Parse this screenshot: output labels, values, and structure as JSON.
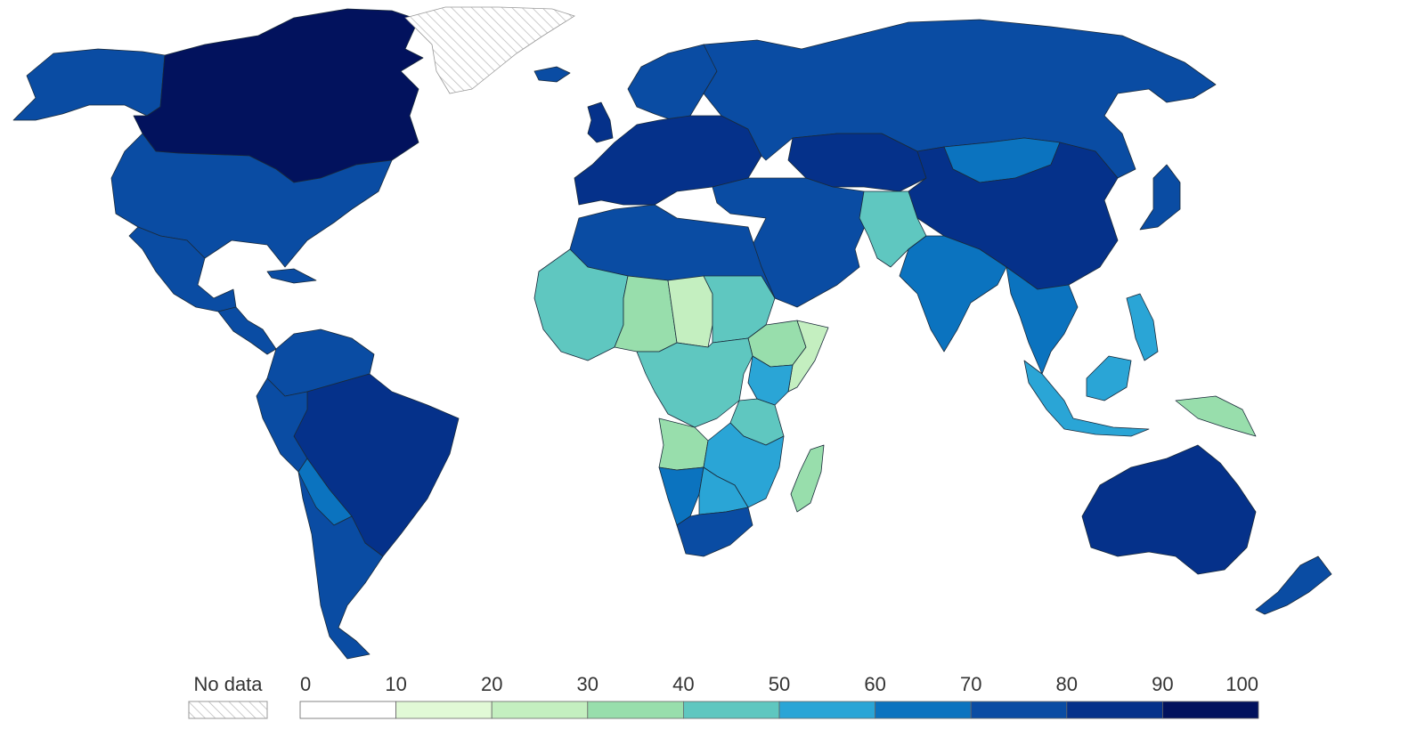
{
  "legend": {
    "no_data_label": "No data",
    "ticks": [
      "0",
      "10",
      "20",
      "30",
      "40",
      "50",
      "60",
      "70",
      "80",
      "90",
      "100"
    ],
    "bins": [
      {
        "from": 0,
        "to": 10,
        "color": "#ffffff"
      },
      {
        "from": 10,
        "to": 20,
        "color": "#e1f9d6"
      },
      {
        "from": 20,
        "to": 30,
        "color": "#c4efc0"
      },
      {
        "from": 30,
        "to": 40,
        "color": "#98deac"
      },
      {
        "from": 40,
        "to": 50,
        "color": "#5fc7c0"
      },
      {
        "from": 50,
        "to": 60,
        "color": "#2aa5d6"
      },
      {
        "from": 60,
        "to": 70,
        "color": "#0b73bf"
      },
      {
        "from": 70,
        "to": 80,
        "color": "#0a4ca3"
      },
      {
        "from": 80,
        "to": 90,
        "color": "#05318a"
      },
      {
        "from": 90,
        "to": 100,
        "color": "#02125d"
      }
    ],
    "nodata_color": "hatched-gray"
  },
  "regions": [
    {
      "id": "canada",
      "bin": 9
    },
    {
      "id": "alaska",
      "bin": 7
    },
    {
      "id": "greenland",
      "bin": -1
    },
    {
      "id": "usa",
      "bin": 7
    },
    {
      "id": "mexico",
      "bin": 7
    },
    {
      "id": "central-america",
      "bin": 7
    },
    {
      "id": "cuba",
      "bin": 7
    },
    {
      "id": "colombia-venezuela",
      "bin": 7
    },
    {
      "id": "brazil",
      "bin": 8
    },
    {
      "id": "peru",
      "bin": 7
    },
    {
      "id": "bolivia",
      "bin": 6
    },
    {
      "id": "argentina-chile",
      "bin": 7
    },
    {
      "id": "europe",
      "bin": 8
    },
    {
      "id": "scandinavia",
      "bin": 7
    },
    {
      "id": "uk",
      "bin": 8
    },
    {
      "id": "iceland",
      "bin": 7
    },
    {
      "id": "russia",
      "bin": 7
    },
    {
      "id": "kazakhstan",
      "bin": 8
    },
    {
      "id": "mongolia",
      "bin": 6
    },
    {
      "id": "china",
      "bin": 8
    },
    {
      "id": "japan",
      "bin": 7
    },
    {
      "id": "middle-east",
      "bin": 7
    },
    {
      "id": "afghanistan-pakistan",
      "bin": 4
    },
    {
      "id": "india",
      "bin": 6
    },
    {
      "id": "southeast-asia",
      "bin": 6
    },
    {
      "id": "indonesia",
      "bin": 5
    },
    {
      "id": "borneo",
      "bin": 5
    },
    {
      "id": "philippines",
      "bin": 5
    },
    {
      "id": "papua-new-guinea",
      "bin": 3
    },
    {
      "id": "australia",
      "bin": 8
    },
    {
      "id": "new-zealand",
      "bin": 7
    },
    {
      "id": "north-africa",
      "bin": 7
    },
    {
      "id": "west-africa",
      "bin": 4
    },
    {
      "id": "sahel",
      "bin": 3
    },
    {
      "id": "chad",
      "bin": 2
    },
    {
      "id": "sudan",
      "bin": 4
    },
    {
      "id": "ethiopia",
      "bin": 3
    },
    {
      "id": "somalia",
      "bin": 2
    },
    {
      "id": "central-africa",
      "bin": 4
    },
    {
      "id": "kenya",
      "bin": 5
    },
    {
      "id": "east-africa",
      "bin": 4
    },
    {
      "id": "angola",
      "bin": 3
    },
    {
      "id": "zambia-mozambique",
      "bin": 5
    },
    {
      "id": "namibia",
      "bin": 6
    },
    {
      "id": "botswana-zimbabwe",
      "bin": 5
    },
    {
      "id": "south-africa",
      "bin": 7
    },
    {
      "id": "madagascar",
      "bin": 3
    }
  ]
}
